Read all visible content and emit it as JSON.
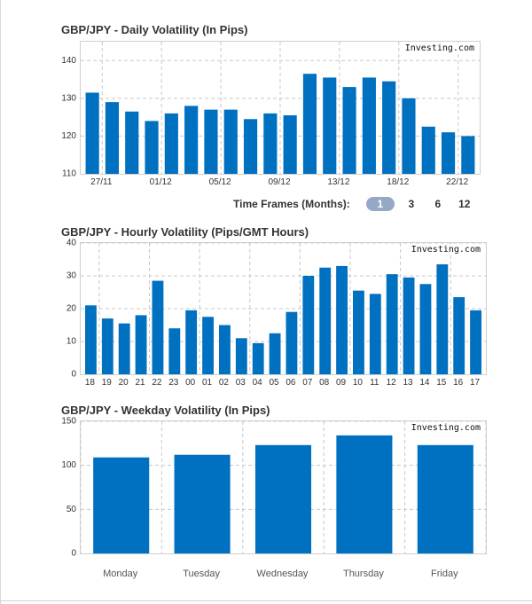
{
  "colors": {
    "bar": "#0070c0",
    "grid": "#c8c8c8",
    "axis": "#888888",
    "active_tf": "#95a8c6"
  },
  "time_frames": {
    "label": "Time Frames (Months):",
    "options": [
      "1",
      "3",
      "6",
      "12"
    ],
    "active": "1"
  },
  "chart_data": [
    {
      "type": "bar",
      "title": "GBP/JPY - Daily Volatility (In Pips)",
      "source": "Investing.com",
      "ylim": [
        110,
        145
      ],
      "yticks": [
        110,
        120,
        130,
        140
      ],
      "tick_labels": [
        "27/11",
        "01/12",
        "05/12",
        "09/12",
        "13/12",
        "18/12",
        "22/12"
      ],
      "values": [
        131.5,
        129,
        126.5,
        124,
        126,
        128,
        127,
        127,
        124.5,
        126,
        125.5,
        136.5,
        135.5,
        133,
        135.5,
        134.5,
        130,
        122.5,
        121,
        120
      ]
    },
    {
      "type": "bar",
      "title": "GBP/JPY - Hourly Volatility (Pips/GMT Hours)",
      "source": "Investing.com",
      "ylim": [
        0,
        40
      ],
      "yticks": [
        0,
        10,
        20,
        30,
        40
      ],
      "categories": [
        "18",
        "19",
        "20",
        "21",
        "22",
        "23",
        "00",
        "01",
        "02",
        "03",
        "04",
        "05",
        "06",
        "07",
        "08",
        "09",
        "10",
        "11",
        "12",
        "13",
        "14",
        "15",
        "16",
        "17"
      ],
      "values": [
        21,
        17,
        15.5,
        18,
        28.5,
        14,
        19.5,
        17.5,
        15,
        11,
        9.5,
        12.5,
        19,
        30,
        32.5,
        33,
        25.5,
        24.5,
        30.5,
        29.5,
        27.5,
        33.5,
        23.5,
        19.5
      ]
    },
    {
      "type": "bar",
      "title": "GBP/JPY - Weekday Volatility (In Pips)",
      "source": "Investing.com",
      "ylim": [
        0,
        150
      ],
      "yticks": [
        0,
        50,
        100,
        150
      ],
      "categories": [
        "Monday",
        "Tuesday",
        "Wednesday",
        "Thursday",
        "Friday"
      ],
      "values": [
        109,
        112,
        123,
        134,
        123
      ]
    }
  ]
}
